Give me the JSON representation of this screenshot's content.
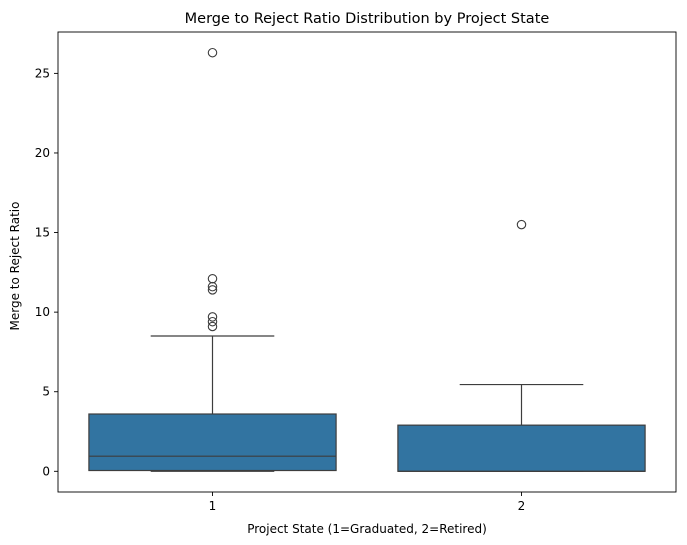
{
  "chart_data": {
    "type": "box",
    "title": "Merge to Reject Ratio Distribution by Project State",
    "xlabel": "Project State (1=Graduated, 2=Retired)",
    "ylabel": "Merge to Reject Ratio",
    "categories": [
      "1",
      "2"
    ],
    "ylim": [
      -1.3,
      27.6
    ],
    "yticks": [
      0,
      5,
      10,
      15,
      20,
      25
    ],
    "grid": false,
    "box_color": "#3274a1",
    "line_color": "#3d3d3d",
    "boxes": [
      {
        "category": "1",
        "whisker_low": 0.0,
        "q1": 0.05,
        "median": 0.95,
        "q3": 3.6,
        "whisker_high": 8.5,
        "outliers": [
          9.1,
          9.4,
          9.7,
          11.4,
          11.6,
          12.1,
          26.3
        ]
      },
      {
        "category": "2",
        "whisker_low": 0.0,
        "q1": 0.0,
        "median": 0.0,
        "q3": 2.9,
        "whisker_high": 5.45,
        "outliers": [
          15.5
        ]
      }
    ]
  }
}
